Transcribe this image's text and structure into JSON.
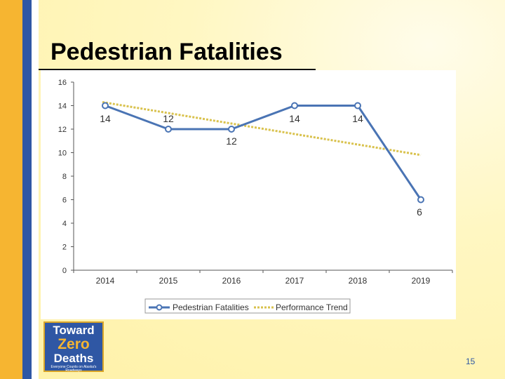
{
  "slide": {
    "title": "Pedestrian Fatalities",
    "page_number": "15"
  },
  "logo": {
    "line1": "Toward",
    "line2": "Zero",
    "line3": "Deaths",
    "tagline": "Everyone Counts on Alaska's Roadways"
  },
  "colors": {
    "series": "#4a74b4",
    "trend": "#d9c24e",
    "accent_yellow": "#f6b531",
    "accent_blue": "#2f57a4"
  },
  "chart_data": {
    "type": "line",
    "title": "",
    "xlabel": "",
    "ylabel": "",
    "categories": [
      "2014",
      "2015",
      "2016",
      "2017",
      "2018",
      "2019"
    ],
    "y_ticks": [
      "0",
      "2",
      "4",
      "6",
      "8",
      "10",
      "12",
      "14",
      "16"
    ],
    "ylim": [
      0,
      16
    ],
    "legend_position": "bottom",
    "series": [
      {
        "name": "Pedestrian Fatalities",
        "values": [
          14,
          12,
          12,
          14,
          14,
          6
        ],
        "data_labels": [
          "14",
          "12",
          "12",
          "14",
          "14",
          "6"
        ]
      },
      {
        "name": "Performance Trend",
        "style": "dotted",
        "start": 14.3,
        "end": 9.8
      }
    ]
  }
}
